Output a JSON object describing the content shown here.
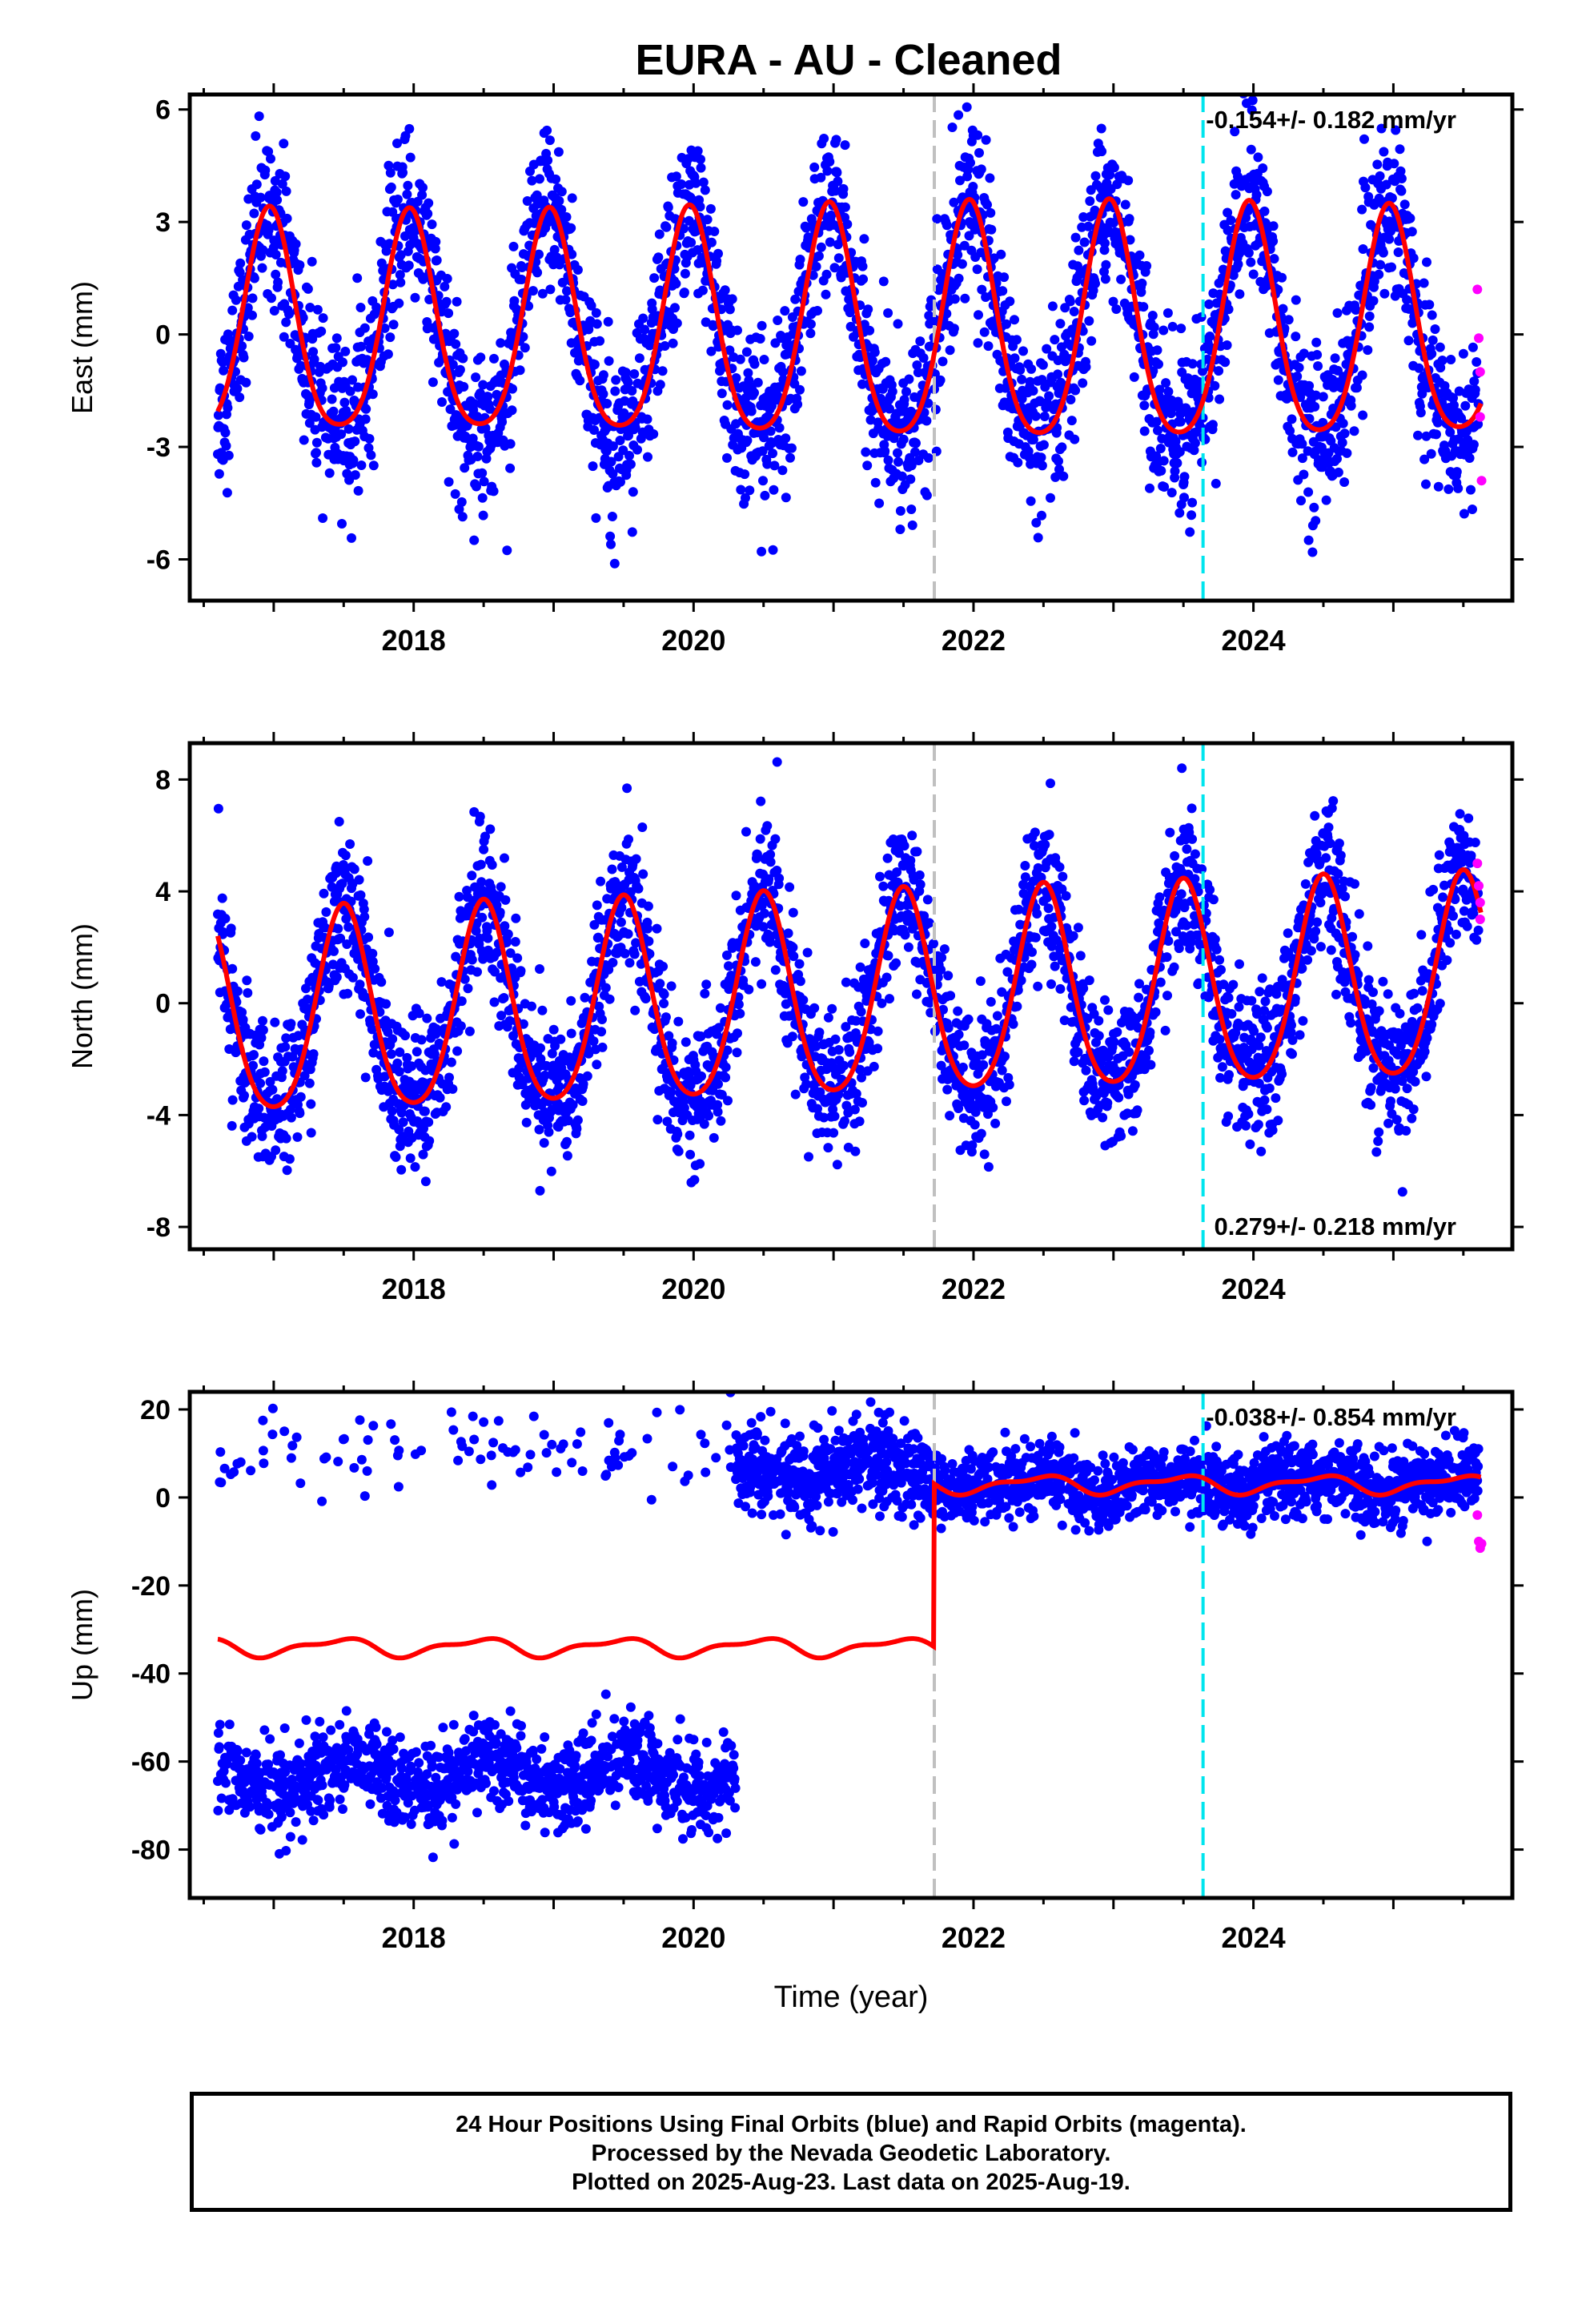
{
  "title": "EURA  - AU - Cleaned",
  "colors": {
    "final_orbits": "#0000ff",
    "rapid_orbits": "#ff00ff",
    "model_fit": "#ff0000",
    "gray_event_line": "#c0c0c0",
    "cyan_event_line": "#00e5ee"
  },
  "footer": {
    "line1": "24 Hour Positions Using Final Orbits (blue) and Rapid Orbits (magenta).",
    "line2": "Processed by the Nevada Geodetic Laboratory.",
    "line3": "Plotted on 2025-Aug-23. Last data on 2025-Aug-19."
  },
  "chart_data": [
    {
      "type": "scatter",
      "panel": "east",
      "ylabel": "East (mm)",
      "xlabel": "",
      "rate_label": "-0.154+/- 0.182 mm/yr",
      "rate_label_position": "top-right",
      "xlim": [
        2016.4,
        2025.85
      ],
      "ylim": [
        -7.1,
        6.4
      ],
      "x_ticks": [
        2018,
        2020,
        2022,
        2024
      ],
      "y_ticks": [
        -6,
        -3,
        0,
        3,
        6
      ],
      "event_lines": [
        {
          "x": 2021.72,
          "color": "gray",
          "style": "dashed"
        },
        {
          "x": 2023.64,
          "color": "cyan",
          "style": "dashed"
        }
      ],
      "data_start": 2016.6,
      "data_end": 2025.63,
      "seasonal_model": {
        "annual_amplitude": 3.0,
        "peak_phase_year_fraction": 0.97,
        "noise_sd": 1.1
      },
      "series": [
        {
          "name": "Final Orbits",
          "color": "blue"
        },
        {
          "name": "Rapid Orbits",
          "color": "magenta",
          "values": [
            [
              2025.6,
              1.2
            ],
            [
              2025.61,
              -0.1
            ],
            [
              2025.62,
              -1.0
            ],
            [
              2025.62,
              -2.2
            ],
            [
              2025.63,
              -3.9
            ]
          ]
        },
        {
          "name": "Model",
          "color": "red"
        }
      ]
    },
    {
      "type": "scatter",
      "panel": "north",
      "ylabel": "North (mm)",
      "xlabel": "",
      "rate_label": "0.279+/- 0.218 mm/yr",
      "rate_label_position": "bottom-right",
      "xlim": [
        2016.4,
        2025.85
      ],
      "ylim": [
        -8.8,
        9.3
      ],
      "x_ticks": [
        2018,
        2020,
        2022,
        2024
      ],
      "y_ticks": [
        -8,
        -4,
        0,
        4,
        8
      ],
      "event_lines": [
        {
          "x": 2021.72,
          "color": "gray",
          "style": "dashed"
        },
        {
          "x": 2023.64,
          "color": "cyan",
          "style": "dashed"
        }
      ],
      "data_start": 2016.6,
      "data_end": 2025.63,
      "seasonal_model": {
        "annual_amplitude": 3.6,
        "peak_phase_year_fraction": 0.5,
        "noise_sd": 1.3
      },
      "series": [
        {
          "name": "Final Orbits",
          "color": "blue"
        },
        {
          "name": "Rapid Orbits",
          "color": "magenta",
          "values": [
            [
              2025.6,
              5.0
            ],
            [
              2025.61,
              4.2
            ],
            [
              2025.62,
              3.6
            ],
            [
              2025.62,
              3.0
            ]
          ]
        },
        {
          "name": "Model",
          "color": "red"
        }
      ]
    },
    {
      "type": "scatter",
      "panel": "up",
      "ylabel": "Up (mm)",
      "xlabel": "Time (year)",
      "rate_label": "-0.038+/- 0.854 mm/yr",
      "rate_label_position": "top-right",
      "xlim": [
        2016.4,
        2025.85
      ],
      "ylim": [
        -91,
        24
      ],
      "x_ticks": [
        2018,
        2020,
        2022,
        2024
      ],
      "y_ticks": [
        -80,
        -60,
        -40,
        -20,
        0,
        20
      ],
      "event_lines": [
        {
          "x": 2021.72,
          "color": "gray",
          "style": "dashed"
        },
        {
          "x": 2023.64,
          "color": "cyan",
          "style": "dashed"
        }
      ],
      "data_start": 2016.6,
      "data_end": 2025.63,
      "model_offset_before_2021_72": -34,
      "model_offset_after_2021_72": 3,
      "upper_cluster_level_before_2020_3": 10,
      "lower_cluster_level_before_2020_3": -63,
      "series": [
        {
          "name": "Final Orbits",
          "color": "blue"
        },
        {
          "name": "Rapid Orbits",
          "color": "magenta",
          "values": [
            [
              2025.6,
              -4.0
            ],
            [
              2025.61,
              -10.0
            ],
            [
              2025.62,
              -11.5
            ],
            [
              2025.63,
              -10.5
            ]
          ]
        },
        {
          "name": "Model",
          "color": "red"
        }
      ]
    }
  ]
}
